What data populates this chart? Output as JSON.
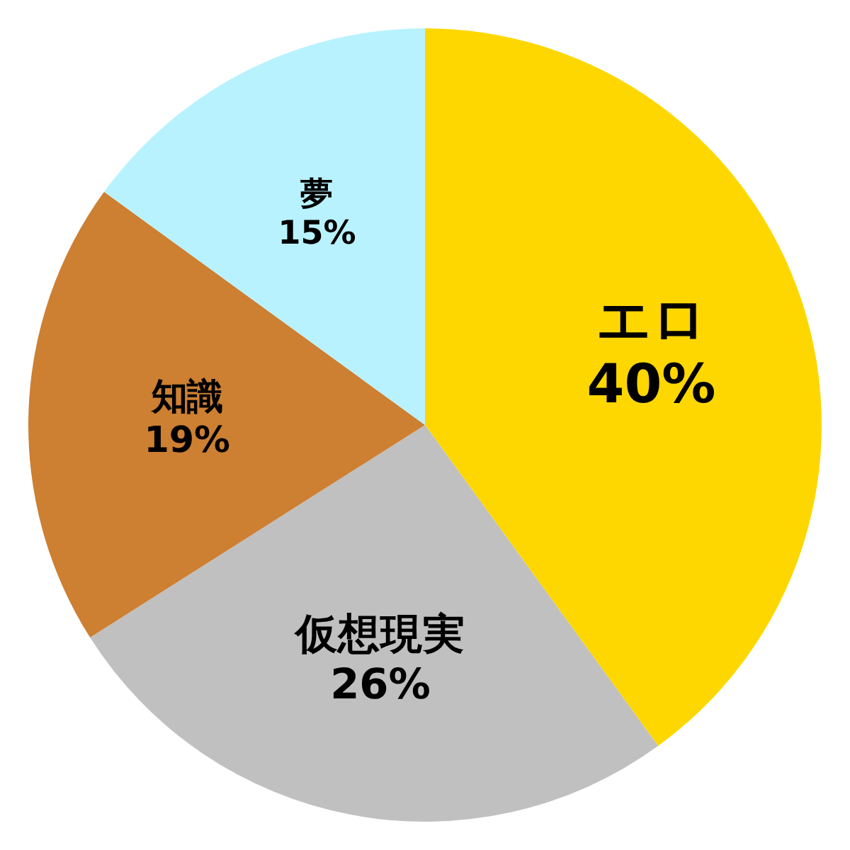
{
  "chart_data": {
    "type": "pie",
    "categories": [
      "エロ",
      "仮想現実",
      "知識",
      "夢"
    ],
    "values": [
      40,
      26,
      19,
      15
    ],
    "value_labels": [
      "40%",
      "26%",
      "19%",
      "15%"
    ],
    "colors": [
      "#ffd700",
      "#c0c0c0",
      "#cd7f32",
      "#b9f2ff"
    ]
  }
}
